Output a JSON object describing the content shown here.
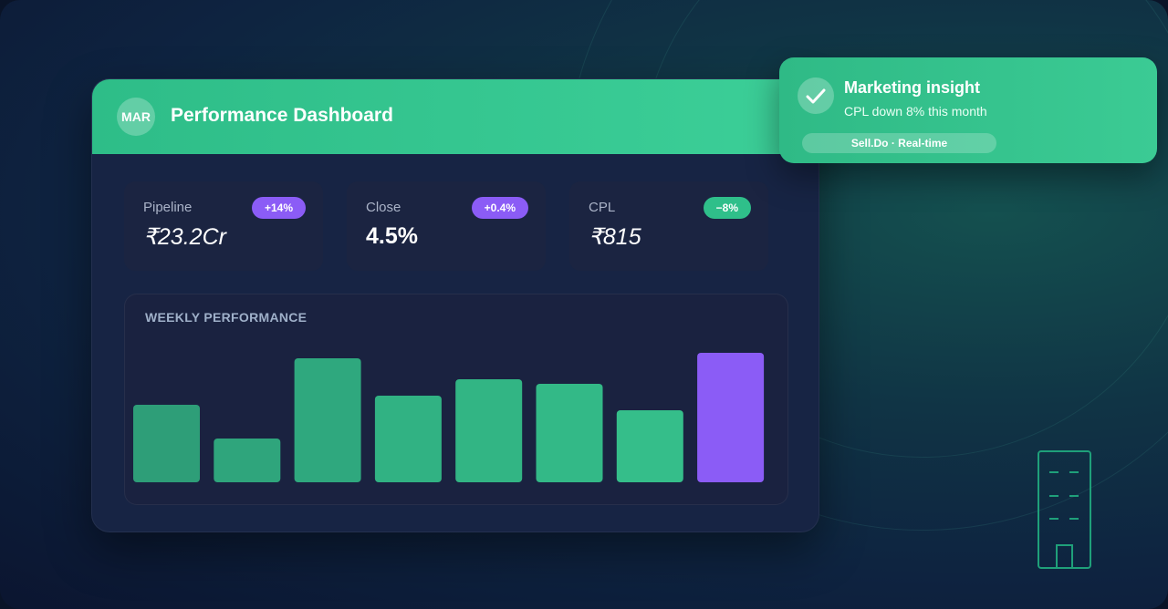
{
  "header": {
    "avatar": "MAR",
    "title": "Performance Dashboard"
  },
  "kpis": [
    {
      "label": "Pipeline",
      "value": "₹23.2Cr",
      "badge": "+14%",
      "badge_color": "#8b5cf6"
    },
    {
      "label": "Close",
      "value": "4.5%",
      "badge": "+0.4%",
      "badge_color": "#8b5cf6"
    },
    {
      "label": "CPL",
      "value": "₹815",
      "badge": "−8%",
      "badge_color": "#2fbf8a"
    }
  ],
  "chart_data": {
    "type": "bar",
    "title": "WEEKLY PERFORMANCE",
    "categories": [
      null,
      null,
      null,
      null,
      null,
      null,
      null,
      null
    ],
    "values": [
      85,
      48,
      136,
      95,
      113,
      108,
      79,
      142
    ],
    "colors": [
      "#2e9e78",
      "#2fa57c",
      "#2fa87e",
      "#31b283",
      "#32b584",
      "#33b987",
      "#35be8a",
      "#8b5cf6"
    ],
    "ylim": [
      0,
      150
    ]
  },
  "toast": {
    "title": "Marketing insight",
    "text": "CPL down 8% this month",
    "tag": "Sell.Do · Real-time"
  }
}
